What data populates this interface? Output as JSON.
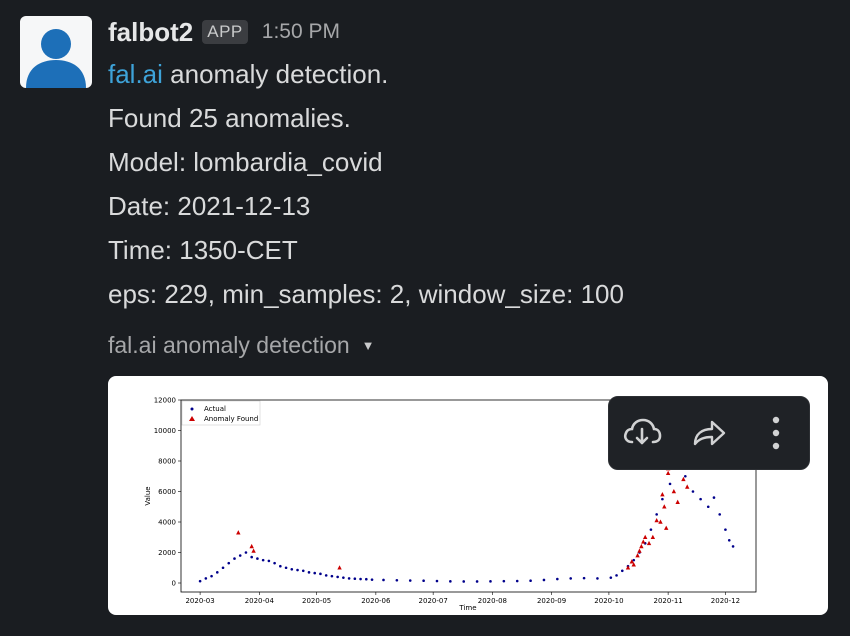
{
  "message": {
    "sender": "falbot2",
    "badge": "APP",
    "time": "1:50 PM",
    "link_text": "fal.ai",
    "line1_rest": " anomaly detection.",
    "lines": [
      "Found 25 anomalies.",
      "Model: lombardia_covid",
      "Date: 2021-12-13",
      "Time: 1350-CET",
      "eps: 229, min_samples: 2, window_size: 100"
    ]
  },
  "attachment": {
    "title": "fal.ai anomaly detection",
    "toolbar": {
      "download_icon": "cloud-download-icon",
      "share_icon": "share-arrow-icon",
      "more_icon": "vertical-ellipsis-icon"
    }
  },
  "colors": {
    "link": "#3ea3d9",
    "background": "#1a1d21",
    "actual": "#00008b",
    "anomaly": "#cc0000"
  },
  "chart_data": {
    "type": "scatter",
    "xlabel": "Time",
    "ylabel": "Value",
    "ylim": [
      0,
      12000
    ],
    "yticks": [
      0,
      2000,
      4000,
      6000,
      8000,
      10000,
      12000
    ],
    "xticks": [
      "2020-03",
      "2020-04",
      "2020-05",
      "2020-06",
      "2020-07",
      "2020-08",
      "2020-09",
      "2020-10",
      "2020-11",
      "2020-12"
    ],
    "legend": [
      "Actual",
      "Anomaly Found"
    ],
    "legend_position": "top-left",
    "series": [
      {
        "name": "Actual",
        "points": [
          [
            "2020-03-01",
            120
          ],
          [
            "2020-03-04",
            300
          ],
          [
            "2020-03-07",
            450
          ],
          [
            "2020-03-10",
            700
          ],
          [
            "2020-03-13",
            1000
          ],
          [
            "2020-03-16",
            1300
          ],
          [
            "2020-03-19",
            1600
          ],
          [
            "2020-03-22",
            1800
          ],
          [
            "2020-03-25",
            2000
          ],
          [
            "2020-03-28",
            1700
          ],
          [
            "2020-03-31",
            1600
          ],
          [
            "2020-04-03",
            1500
          ],
          [
            "2020-04-06",
            1450
          ],
          [
            "2020-04-09",
            1300
          ],
          [
            "2020-04-12",
            1100
          ],
          [
            "2020-04-15",
            1000
          ],
          [
            "2020-04-18",
            900
          ],
          [
            "2020-04-21",
            850
          ],
          [
            "2020-04-24",
            800
          ],
          [
            "2020-04-27",
            700
          ],
          [
            "2020-04-30",
            650
          ],
          [
            "2020-05-03",
            600
          ],
          [
            "2020-05-06",
            500
          ],
          [
            "2020-05-09",
            450
          ],
          [
            "2020-05-12",
            400
          ],
          [
            "2020-05-15",
            350
          ],
          [
            "2020-05-18",
            300
          ],
          [
            "2020-05-21",
            280
          ],
          [
            "2020-05-24",
            260
          ],
          [
            "2020-05-27",
            250
          ],
          [
            "2020-05-30",
            220
          ],
          [
            "2020-06-05",
            200
          ],
          [
            "2020-06-12",
            180
          ],
          [
            "2020-06-19",
            160
          ],
          [
            "2020-06-26",
            150
          ],
          [
            "2020-07-03",
            130
          ],
          [
            "2020-07-10",
            110
          ],
          [
            "2020-07-17",
            100
          ],
          [
            "2020-07-24",
            100
          ],
          [
            "2020-07-31",
            110
          ],
          [
            "2020-08-07",
            120
          ],
          [
            "2020-08-14",
            130
          ],
          [
            "2020-08-21",
            150
          ],
          [
            "2020-08-28",
            200
          ],
          [
            "2020-09-04",
            260
          ],
          [
            "2020-09-11",
            300
          ],
          [
            "2020-09-18",
            320
          ],
          [
            "2020-09-25",
            300
          ],
          [
            "2020-10-02",
            350
          ],
          [
            "2020-10-05",
            500
          ],
          [
            "2020-10-08",
            800
          ],
          [
            "2020-10-11",
            1100
          ],
          [
            "2020-10-14",
            1500
          ],
          [
            "2020-10-17",
            2000
          ],
          [
            "2020-10-20",
            2600
          ],
          [
            "2020-10-23",
            3500
          ],
          [
            "2020-10-26",
            4500
          ],
          [
            "2020-10-29",
            5500
          ],
          [
            "2020-11-02",
            6500
          ],
          [
            "2020-11-06",
            7500
          ],
          [
            "2020-11-10",
            7000
          ],
          [
            "2020-11-14",
            6000
          ],
          [
            "2020-11-18",
            5500
          ],
          [
            "2020-11-22",
            5000
          ],
          [
            "2020-11-25",
            5600
          ],
          [
            "2020-11-28",
            4500
          ],
          [
            "2020-12-01",
            3500
          ],
          [
            "2020-12-03",
            2800
          ],
          [
            "2020-12-05",
            2400
          ]
        ]
      },
      {
        "name": "Anomaly Found",
        "points": [
          [
            "2020-03-21",
            3300
          ],
          [
            "2020-03-28",
            2400
          ],
          [
            "2020-03-29",
            2100
          ],
          [
            "2020-05-13",
            1000
          ],
          [
            "2020-10-16",
            1800
          ],
          [
            "2020-10-17",
            2100
          ],
          [
            "2020-10-18",
            2400
          ],
          [
            "2020-10-19",
            2700
          ],
          [
            "2020-10-20",
            3000
          ],
          [
            "2020-10-26",
            4100
          ],
          [
            "2020-10-29",
            5800
          ],
          [
            "2020-11-01",
            7200
          ],
          [
            "2020-11-01",
            7500
          ],
          [
            "2020-11-06",
            5300
          ],
          [
            "2020-11-09",
            6800
          ],
          [
            "2020-11-11",
            6300
          ],
          [
            "2020-10-31",
            3600
          ],
          [
            "2020-10-28",
            4000
          ],
          [
            "2020-10-24",
            3000
          ],
          [
            "2020-10-22",
            2600
          ],
          [
            "2020-10-13",
            1400
          ],
          [
            "2020-10-11",
            1000
          ],
          [
            "2020-10-14",
            1200
          ],
          [
            "2020-11-04",
            6000
          ],
          [
            "2020-10-30",
            5000
          ]
        ]
      }
    ]
  }
}
